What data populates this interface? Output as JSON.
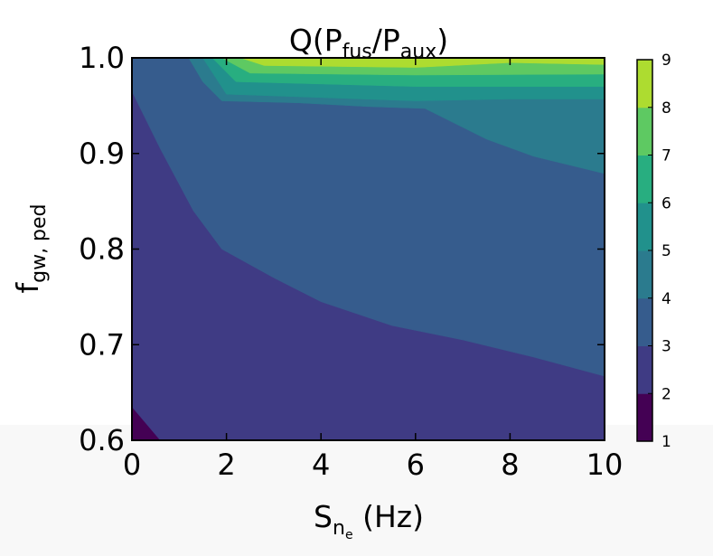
{
  "chart_data": {
    "type": "heatmap",
    "subtype": "filled-contour",
    "title": {
      "base": "Q(P",
      "sub1": "fus",
      "mid": "/P",
      "sub2": "aux",
      "end": ")"
    },
    "xlabel": {
      "base": "S",
      "sub": "n",
      "subsub": "e",
      "end": " (Hz)"
    },
    "ylabel": {
      "base": "f",
      "sub": "gw, ped"
    },
    "xlim": [
      0,
      10
    ],
    "ylim": [
      0.6,
      1.0
    ],
    "x_ticks": [
      "0",
      "2",
      "4",
      "6",
      "8",
      "10"
    ],
    "y_ticks": [
      "0.6",
      "0.7",
      "0.8",
      "0.9",
      "1.0"
    ],
    "colorbar": {
      "levels": [
        1,
        2,
        3,
        4,
        5,
        6,
        7,
        8,
        9
      ],
      "tick_labels": [
        "1",
        "2",
        "3",
        "4",
        "5",
        "6",
        "7",
        "8",
        "9"
      ],
      "colors": [
        "#440154",
        "#3f3b84",
        "#365c8d",
        "#2b7b8e",
        "#21918c",
        "#28ae80",
        "#5ec962",
        "#addc30",
        "#e3e418"
      ]
    },
    "contour_boundaries": [
      {
        "level": 2,
        "points": [
          [
            0,
            0.635
          ],
          [
            0.6,
            0.6
          ]
        ]
      },
      {
        "level": 3,
        "points": [
          [
            0,
            0.965
          ],
          [
            0.6,
            0.905
          ],
          [
            1.3,
            0.84
          ],
          [
            1.9,
            0.8
          ],
          [
            3.0,
            0.77
          ],
          [
            4.0,
            0.745
          ],
          [
            5.5,
            0.72
          ],
          [
            7.0,
            0.705
          ],
          [
            8.5,
            0.687
          ],
          [
            10,
            0.667
          ]
        ]
      },
      {
        "level": 4,
        "points": [
          [
            1.2,
            1.0
          ],
          [
            1.5,
            0.975
          ],
          [
            1.9,
            0.955
          ],
          [
            3.5,
            0.953
          ],
          [
            5.0,
            0.949
          ],
          [
            6.2,
            0.947
          ],
          [
            7.5,
            0.915
          ],
          [
            8.5,
            0.897
          ],
          [
            10,
            0.879
          ]
        ]
      },
      {
        "level": 5,
        "points": [
          [
            1.5,
            1.0
          ],
          [
            2.0,
            0.962
          ],
          [
            6.0,
            0.955
          ],
          [
            8.0,
            0.957
          ],
          [
            10,
            0.957
          ]
        ]
      },
      {
        "level": 6,
        "points": [
          [
            1.7,
            1.0
          ],
          [
            2.2,
            0.975
          ],
          [
            6.0,
            0.97
          ],
          [
            10,
            0.97
          ]
        ]
      },
      {
        "level": 7,
        "points": [
          [
            1.9,
            1.0
          ],
          [
            2.5,
            0.984
          ],
          [
            6.0,
            0.982
          ],
          [
            10,
            0.983
          ]
        ]
      },
      {
        "level": 8,
        "points": [
          [
            2.3,
            1.0
          ],
          [
            2.8,
            0.992
          ],
          [
            6.0,
            0.99
          ],
          [
            8.0,
            0.995
          ],
          [
            10,
            0.993
          ]
        ]
      }
    ]
  }
}
